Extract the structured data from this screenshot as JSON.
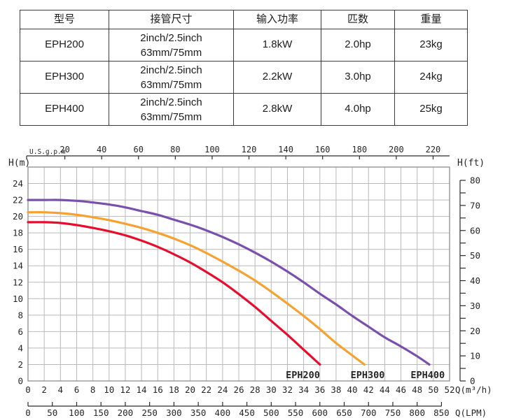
{
  "table": {
    "headers": [
      "型号",
      "接管尺寸",
      "输入功率",
      "匹数",
      "重量"
    ],
    "rows": [
      {
        "model": "EPH200",
        "pipe": [
          "2inch/2.5inch",
          "63mm/75mm"
        ],
        "power": "1.8kW",
        "horsepower": "2.0hp",
        "weight": "23kg"
      },
      {
        "model": "EPH300",
        "pipe": [
          "2inch/2.5inch",
          "63mm/75mm"
        ],
        "power": "2.2kW",
        "horsepower": "3.0hp",
        "weight": "24kg"
      },
      {
        "model": "EPH400",
        "pipe": [
          "2inch/2.5inch",
          "63mm/75mm"
        ],
        "power": "2.8kW",
        "horsepower": "4.0hp",
        "weight": "25kg"
      }
    ]
  },
  "chart_data": {
    "type": "line",
    "title": "",
    "grid": true,
    "axes": {
      "top": {
        "label": "U.S.g.p.m",
        "ticks": [
          20,
          40,
          60,
          80,
          100,
          120,
          140,
          160,
          180,
          200,
          220
        ],
        "gpm_per_m3h": 4.4029
      },
      "left": {
        "label": "H(m)",
        "ticks": [
          24,
          22,
          20,
          18,
          16,
          14,
          12,
          10,
          8,
          6,
          4,
          2,
          0
        ],
        "range": [
          0,
          26
        ],
        "grid_step": 2
      },
      "right": {
        "label": "H(ft)",
        "ticks": [
          80,
          70,
          60,
          50,
          40,
          30,
          20,
          10,
          0
        ],
        "minor_step": 5,
        "max": 80,
        "m_per_ft": 0.3048
      },
      "bottom": {
        "label": "Q(m³/h)",
        "ticks": [
          0,
          2,
          4,
          6,
          8,
          10,
          12,
          14,
          16,
          18,
          20,
          22,
          24,
          26,
          28,
          30,
          32,
          34,
          36,
          38,
          40,
          42,
          44,
          46,
          48,
          50,
          52
        ],
        "range": [
          0,
          52
        ],
        "grid_step": 2
      },
      "bottom2": {
        "label": "Q(LPM)",
        "ticks": [
          0,
          50,
          100,
          150,
          200,
          250,
          300,
          350,
          400,
          450,
          500,
          550,
          600,
          650,
          700,
          750,
          800,
          850
        ],
        "lpm_per_m3h": 16.6667
      }
    },
    "series": [
      {
        "name": "EPH200",
        "color": "#e60e2d",
        "label_q": 33.9,
        "points": [
          [
            0,
            19.3
          ],
          [
            2,
            19.3
          ],
          [
            4,
            19.2
          ],
          [
            6,
            18.95
          ],
          [
            8,
            18.6
          ],
          [
            10,
            18.2
          ],
          [
            12,
            17.7
          ],
          [
            14,
            17.05
          ],
          [
            16,
            16.3
          ],
          [
            18,
            15.4
          ],
          [
            20,
            14.4
          ],
          [
            22,
            13.25
          ],
          [
            24,
            12.0
          ],
          [
            26,
            10.55
          ],
          [
            28,
            9.0
          ],
          [
            30,
            7.3
          ],
          [
            32,
            5.6
          ],
          [
            34,
            3.8
          ],
          [
            36,
            2.0
          ]
        ]
      },
      {
        "name": "EPH300",
        "color": "#f6a231",
        "label_q": 41.9,
        "points": [
          [
            0,
            20.5
          ],
          [
            2,
            20.5
          ],
          [
            4,
            20.4
          ],
          [
            6,
            20.2
          ],
          [
            8,
            19.9
          ],
          [
            10,
            19.55
          ],
          [
            12,
            19.1
          ],
          [
            14,
            18.6
          ],
          [
            16,
            18.0
          ],
          [
            18,
            17.3
          ],
          [
            20,
            16.5
          ],
          [
            22,
            15.55
          ],
          [
            24,
            14.5
          ],
          [
            26,
            13.4
          ],
          [
            28,
            12.2
          ],
          [
            30,
            10.85
          ],
          [
            32,
            9.4
          ],
          [
            34,
            7.9
          ],
          [
            36,
            6.3
          ],
          [
            38,
            4.6
          ],
          [
            40,
            3.1
          ],
          [
            41.5,
            2.0
          ]
        ]
      },
      {
        "name": "EPH400",
        "color": "#7a50ad",
        "label_q": 49.3,
        "points": [
          [
            0,
            22.0
          ],
          [
            2,
            22.0
          ],
          [
            4,
            22.0
          ],
          [
            6,
            21.9
          ],
          [
            8,
            21.7
          ],
          [
            10,
            21.45
          ],
          [
            12,
            21.1
          ],
          [
            14,
            20.65
          ],
          [
            16,
            20.2
          ],
          [
            18,
            19.6
          ],
          [
            20,
            19.0
          ],
          [
            22,
            18.3
          ],
          [
            24,
            17.5
          ],
          [
            26,
            16.6
          ],
          [
            28,
            15.6
          ],
          [
            30,
            14.5
          ],
          [
            32,
            13.3
          ],
          [
            34,
            12.0
          ],
          [
            36,
            10.6
          ],
          [
            38,
            9.3
          ],
          [
            40,
            7.9
          ],
          [
            42,
            6.6
          ],
          [
            44,
            5.3
          ],
          [
            46,
            4.2
          ],
          [
            48,
            3.0
          ],
          [
            49.5,
            2.0
          ]
        ]
      }
    ]
  },
  "colors": {
    "grid": "#b9b9b9",
    "plot_border": "#8d8d8d",
    "axis": "#2b2b2b",
    "table_border": "#3b3b3b"
  }
}
